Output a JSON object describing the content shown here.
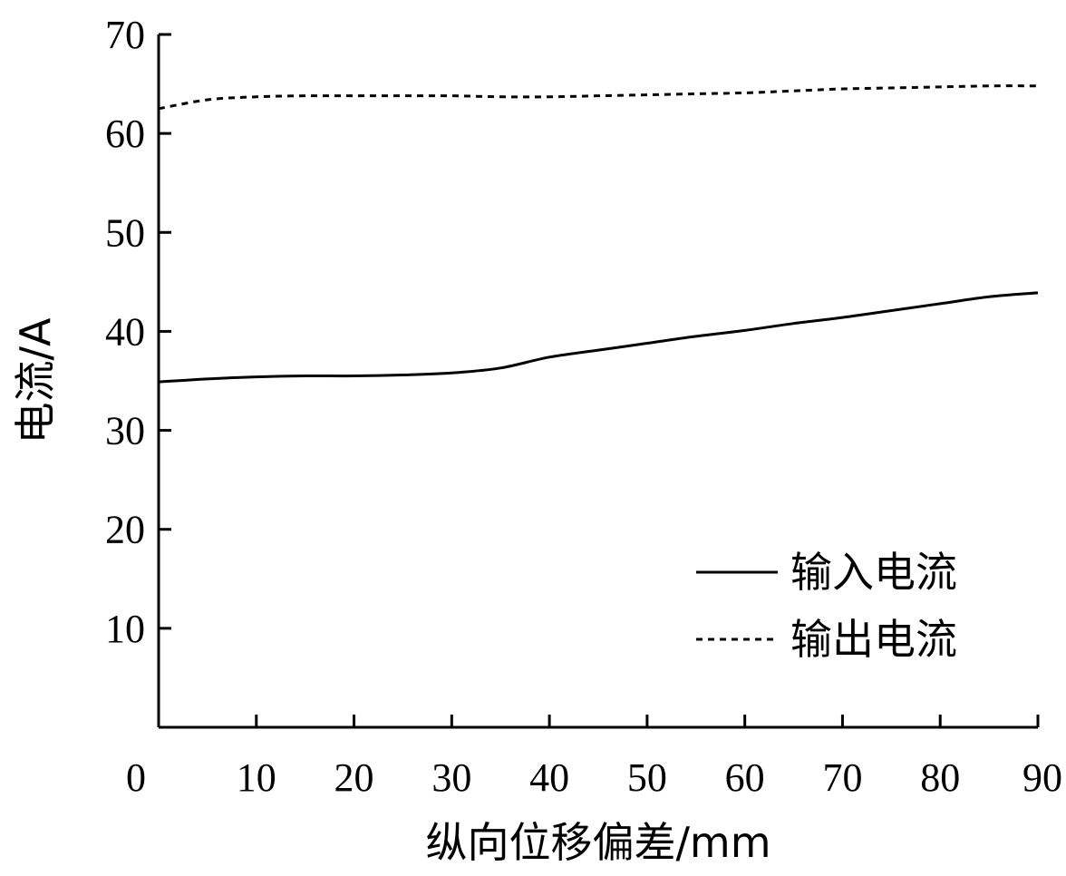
{
  "chart_data": {
    "type": "line",
    "title": "",
    "xlabel": "纵向位移偏差/mm",
    "ylabel": "电流/A",
    "xlim": [
      0,
      90
    ],
    "ylim": [
      0,
      70
    ],
    "x_ticks": [
      0,
      10,
      20,
      30,
      40,
      50,
      60,
      70,
      80,
      90
    ],
    "y_ticks": [
      10,
      20,
      30,
      40,
      50,
      60,
      70
    ],
    "grid": false,
    "legend_position": "bottom-right",
    "series": [
      {
        "name": "输入电流",
        "style": "solid",
        "color": "#000000",
        "x": [
          0,
          5,
          10,
          15,
          20,
          25,
          30,
          35,
          40,
          45,
          50,
          55,
          60,
          65,
          70,
          75,
          80,
          85,
          90
        ],
        "y": [
          34.9,
          35.2,
          35.4,
          35.5,
          35.5,
          35.6,
          35.8,
          36.3,
          37.4,
          38.1,
          38.8,
          39.5,
          40.1,
          40.8,
          41.4,
          42.1,
          42.8,
          43.5,
          43.9
        ]
      },
      {
        "name": "输出电流",
        "style": "dashed",
        "color": "#000000",
        "x": [
          0,
          5,
          10,
          15,
          20,
          25,
          30,
          35,
          40,
          45,
          50,
          55,
          60,
          65,
          70,
          75,
          80,
          85,
          90
        ],
        "y": [
          62.5,
          63.4,
          63.7,
          63.8,
          63.8,
          63.8,
          63.8,
          63.7,
          63.7,
          63.8,
          63.9,
          64.0,
          64.1,
          64.3,
          64.5,
          64.6,
          64.7,
          64.8,
          64.8
        ]
      }
    ]
  }
}
